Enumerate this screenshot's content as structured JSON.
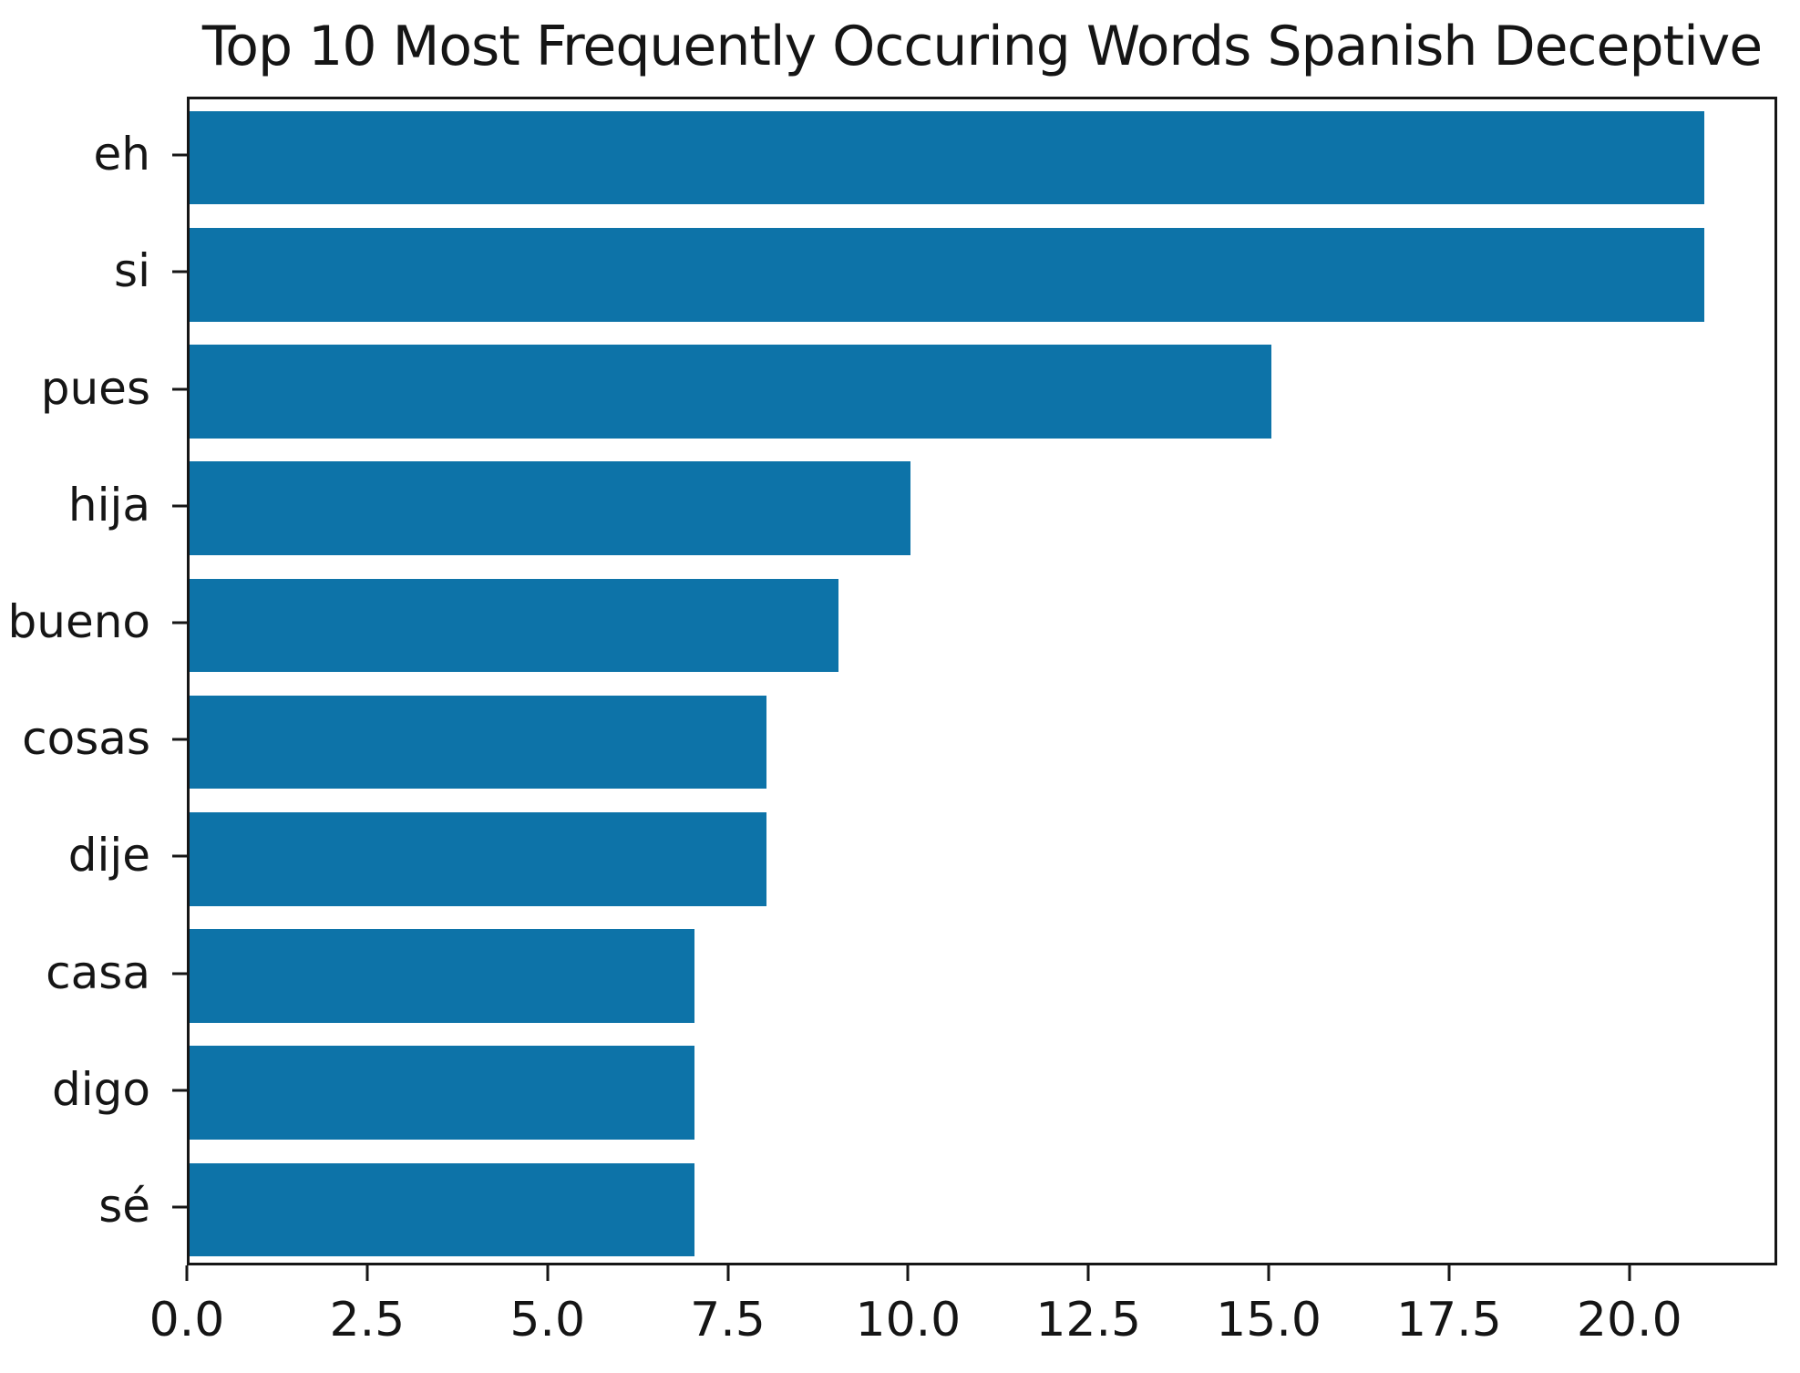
{
  "chart_data": {
    "type": "bar",
    "orientation": "horizontal",
    "title": "Top 10 Most Frequently Occuring Words Spanish Deceptive",
    "categories": [
      "eh",
      "si",
      "pues",
      "hija",
      "bueno",
      "cosas",
      "dije",
      "casa",
      "digo",
      "sé"
    ],
    "values": [
      21,
      21,
      15,
      10,
      9,
      8,
      8,
      7,
      7,
      7
    ],
    "xlabel": "",
    "ylabel": "",
    "xlim": [
      0,
      22.05
    ],
    "xticks": [
      0.0,
      2.5,
      5.0,
      7.5,
      10.0,
      12.5,
      15.0,
      17.5,
      20.0
    ],
    "xtick_labels": [
      "0.0",
      "2.5",
      "5.0",
      "7.5",
      "10.0",
      "12.5",
      "15.0",
      "17.5",
      "20.0"
    ],
    "grid": false,
    "legend": "none",
    "bar_color": "#0d73a8",
    "colors": {
      "spine": "#161616",
      "text": "#151515",
      "background": "#ffffff"
    }
  }
}
